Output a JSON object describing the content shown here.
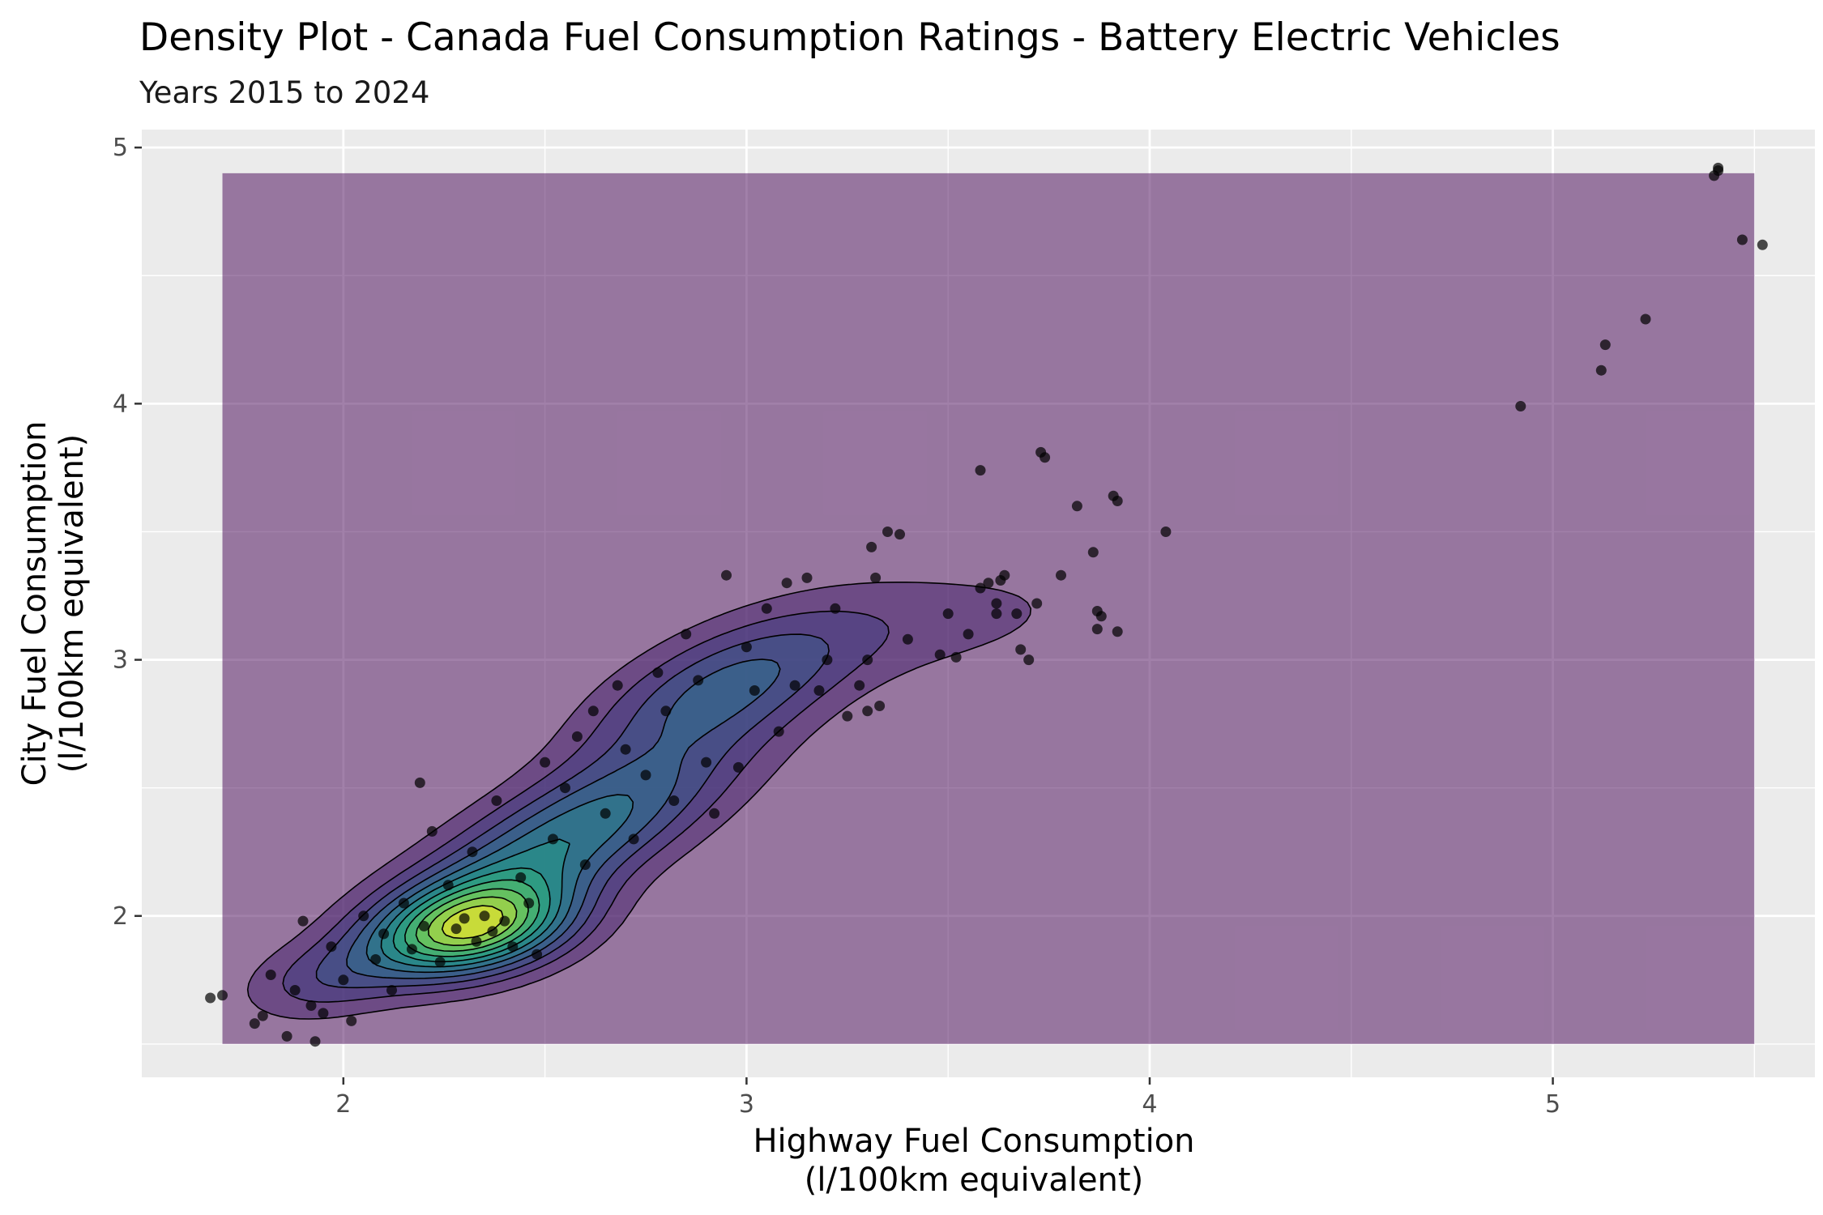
{
  "chart_data": {
    "type": "density-scatter",
    "title": "Density Plot - Canada Fuel Consumption Ratings - Battery Electric Vehicles",
    "subtitle": "Years 2015 to 2024",
    "xlabel_lines": [
      "Highway Fuel Consumption",
      "(l/100km equivalent)"
    ],
    "ylabel_lines": [
      "City Fuel Consumption",
      "(l/100km equivalent)"
    ],
    "xlim": [
      1.5,
      5.65
    ],
    "ylim": [
      1.37,
      5.07
    ],
    "x_ticks": [
      2,
      3,
      4,
      5
    ],
    "y_ticks": [
      2,
      3,
      4,
      5
    ],
    "grid": true,
    "legend": "none",
    "colors": {
      "panel": "#EBEBEB",
      "grid": "#FFFFFF",
      "density_low": "#440154",
      "density_mid": "#21918C",
      "density_high": "#FDE725",
      "points": "#000000"
    },
    "density_tile_extent": {
      "x": [
        1.7,
        5.5
      ],
      "y": [
        1.5,
        4.9
      ]
    },
    "density_components": [
      {
        "mx": 2.32,
        "my": 1.95,
        "sx": 0.17,
        "sy": 0.13,
        "rho": 0.3,
        "w": 1.0
      },
      {
        "mx": 2.55,
        "my": 2.3,
        "sx": 0.28,
        "sy": 0.26,
        "rho": 0.75,
        "w": 0.6
      },
      {
        "mx": 2.95,
        "my": 2.9,
        "sx": 0.23,
        "sy": 0.2,
        "rho": 0.6,
        "w": 0.42
      },
      {
        "mx": 3.5,
        "my": 3.15,
        "sx": 0.3,
        "sy": 0.17,
        "rho": 0.35,
        "w": 0.13
      },
      {
        "mx": 1.95,
        "my": 1.75,
        "sx": 0.14,
        "sy": 0.11,
        "rho": 0.3,
        "w": 0.22
      }
    ],
    "points": [
      [
        1.67,
        1.68
      ],
      [
        1.7,
        1.69
      ],
      [
        1.78,
        1.58
      ],
      [
        1.8,
        1.61
      ],
      [
        1.82,
        1.77
      ],
      [
        1.86,
        1.53
      ],
      [
        1.88,
        1.71
      ],
      [
        1.9,
        1.98
      ],
      [
        1.92,
        1.65
      ],
      [
        1.93,
        1.51
      ],
      [
        1.95,
        1.62
      ],
      [
        1.97,
        1.88
      ],
      [
        2.0,
        1.75
      ],
      [
        2.02,
        1.59
      ],
      [
        2.05,
        2.0
      ],
      [
        2.08,
        1.83
      ],
      [
        2.1,
        1.93
      ],
      [
        2.12,
        1.71
      ],
      [
        2.15,
        2.05
      ],
      [
        2.17,
        1.87
      ],
      [
        2.19,
        2.52
      ],
      [
        2.2,
        1.96
      ],
      [
        2.22,
        2.33
      ],
      [
        2.24,
        1.82
      ],
      [
        2.26,
        2.12
      ],
      [
        2.28,
        1.95
      ],
      [
        2.3,
        1.99
      ],
      [
        2.32,
        2.25
      ],
      [
        2.33,
        1.9
      ],
      [
        2.35,
        2.0
      ],
      [
        2.37,
        1.94
      ],
      [
        2.38,
        2.45
      ],
      [
        2.4,
        1.98
      ],
      [
        2.42,
        1.88
      ],
      [
        2.44,
        2.15
      ],
      [
        2.46,
        2.05
      ],
      [
        2.48,
        1.85
      ],
      [
        2.5,
        2.6
      ],
      [
        2.52,
        2.3
      ],
      [
        2.55,
        2.5
      ],
      [
        2.58,
        2.7
      ],
      [
        2.6,
        2.2
      ],
      [
        2.62,
        2.8
      ],
      [
        2.65,
        2.4
      ],
      [
        2.68,
        2.9
      ],
      [
        2.7,
        2.65
      ],
      [
        2.72,
        2.3
      ],
      [
        2.75,
        2.55
      ],
      [
        2.78,
        2.95
      ],
      [
        2.8,
        2.8
      ],
      [
        2.82,
        2.45
      ],
      [
        2.85,
        3.1
      ],
      [
        2.88,
        2.92
      ],
      [
        2.9,
        2.6
      ],
      [
        2.92,
        2.4
      ],
      [
        2.95,
        3.33
      ],
      [
        2.98,
        2.58
      ],
      [
        3.0,
        3.05
      ],
      [
        3.02,
        2.88
      ],
      [
        3.05,
        3.2
      ],
      [
        3.08,
        2.72
      ],
      [
        3.1,
        3.3
      ],
      [
        3.12,
        2.9
      ],
      [
        3.15,
        3.32
      ],
      [
        3.18,
        2.88
      ],
      [
        3.2,
        3.0
      ],
      [
        3.22,
        3.2
      ],
      [
        3.25,
        2.78
      ],
      [
        3.28,
        2.9
      ],
      [
        3.3,
        3.0
      ],
      [
        3.3,
        2.8
      ],
      [
        3.31,
        3.44
      ],
      [
        3.32,
        3.32
      ],
      [
        3.33,
        2.82
      ],
      [
        3.35,
        3.5
      ],
      [
        3.38,
        3.49
      ],
      [
        3.4,
        3.08
      ],
      [
        3.48,
        3.02
      ],
      [
        3.5,
        3.18
      ],
      [
        3.52,
        3.01
      ],
      [
        3.55,
        3.1
      ],
      [
        3.58,
        3.28
      ],
      [
        3.58,
        3.74
      ],
      [
        3.6,
        3.3
      ],
      [
        3.62,
        3.22
      ],
      [
        3.62,
        3.18
      ],
      [
        3.63,
        3.31
      ],
      [
        3.64,
        3.33
      ],
      [
        3.67,
        3.18
      ],
      [
        3.68,
        3.04
      ],
      [
        3.7,
        3.0
      ],
      [
        3.72,
        3.22
      ],
      [
        3.73,
        3.81
      ],
      [
        3.74,
        3.79
      ],
      [
        3.78,
        3.33
      ],
      [
        3.82,
        3.6
      ],
      [
        3.86,
        3.42
      ],
      [
        3.87,
        3.19
      ],
      [
        3.87,
        3.12
      ],
      [
        3.88,
        3.17
      ],
      [
        3.91,
        3.64
      ],
      [
        3.92,
        3.62
      ],
      [
        3.92,
        3.11
      ],
      [
        4.04,
        3.5
      ],
      [
        4.92,
        3.99
      ],
      [
        5.12,
        4.13
      ],
      [
        5.13,
        4.23
      ],
      [
        5.23,
        4.33
      ],
      [
        5.4,
        4.89
      ],
      [
        5.41,
        4.91
      ],
      [
        5.41,
        4.92
      ],
      [
        5.47,
        4.64
      ],
      [
        5.52,
        4.62
      ]
    ]
  }
}
